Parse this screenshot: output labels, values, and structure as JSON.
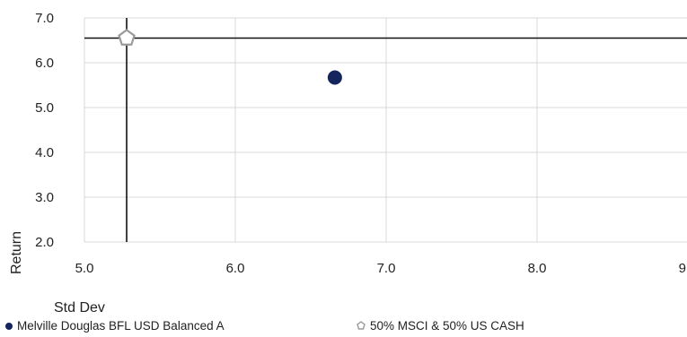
{
  "chart_data": {
    "type": "scatter",
    "xlabel": "Std Dev",
    "ylabel": "Return",
    "xlim": [
      5.0,
      9.0
    ],
    "ylim": [
      2.0,
      7.0
    ],
    "x_ticks": [
      "5.0",
      "6.0",
      "7.0",
      "8.0",
      "9.0"
    ],
    "y_ticks": [
      "2.0",
      "3.0",
      "4.0",
      "5.0",
      "6.0",
      "7.0"
    ],
    "grid": true,
    "legend_position": "bottom",
    "crosshair": {
      "x": 5.28,
      "y": 6.55
    },
    "series": [
      {
        "name": "Melville Douglas BFL USD Balanced A",
        "marker": "circle",
        "color": "#14245c",
        "points": [
          {
            "x": 6.66,
            "y": 5.67
          }
        ]
      },
      {
        "name": "50% MSCI & 50% US CASH",
        "marker": "pentagon",
        "color": "#9a9a9a",
        "points": [
          {
            "x": 5.28,
            "y": 6.55
          }
        ]
      }
    ]
  }
}
